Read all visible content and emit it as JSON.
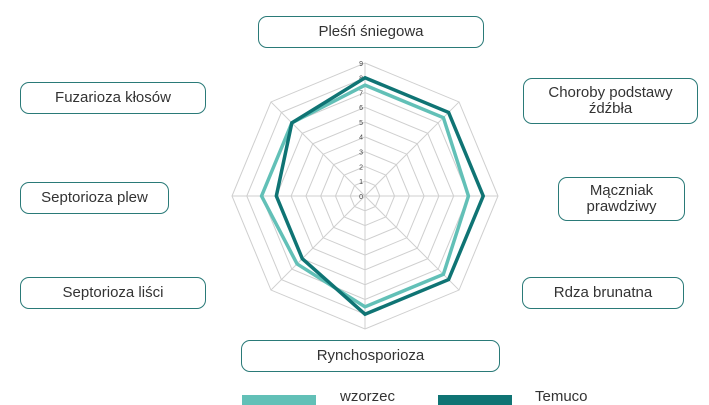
{
  "chart_data": {
    "type": "radar",
    "categories": [
      "Pleśń śniegowa",
      "Choroby podstawy źdźbła",
      "Mączniak prawdziwy",
      "Rdza brunatna",
      "Rynchosporioza",
      "Septorioza liści",
      "Septorioza plew",
      "Fuzarioza kłosów"
    ],
    "series": [
      {
        "name": "wzorzec",
        "color": "#62c0b7",
        "values": [
          7.5,
          7.5,
          7,
          7.5,
          7.5,
          6.5,
          7,
          7
        ]
      },
      {
        "name": "Temuco",
        "color": "#0f7474",
        "values": [
          8,
          8,
          8,
          8,
          8,
          6,
          6,
          7
        ]
      }
    ],
    "rlim": [
      0,
      9
    ],
    "rticks": [
      0,
      1,
      2,
      3,
      4,
      5,
      6,
      7,
      8,
      9
    ],
    "grid": true,
    "legend": "bottom"
  }
}
